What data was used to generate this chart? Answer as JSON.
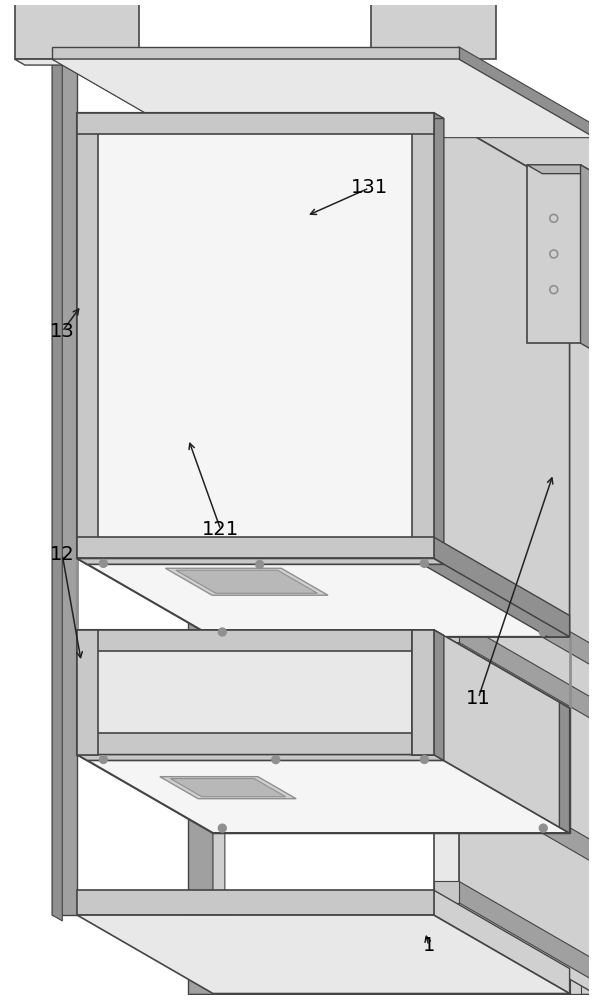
{
  "background_color": "#ffffff",
  "figure_width": 5.92,
  "figure_height": 10.0,
  "panel_white": "#f5f5f5",
  "panel_light": "#e8e8e8",
  "panel_mid": "#d0d0d0",
  "panel_dark": "#b8b8b8",
  "panel_darker": "#a0a0a0",
  "frame_color": "#c8c8c8",
  "frame_dark": "#909090",
  "edge_color": "#444444",
  "edge_thin": "#555555",
  "line_color": "#333333"
}
